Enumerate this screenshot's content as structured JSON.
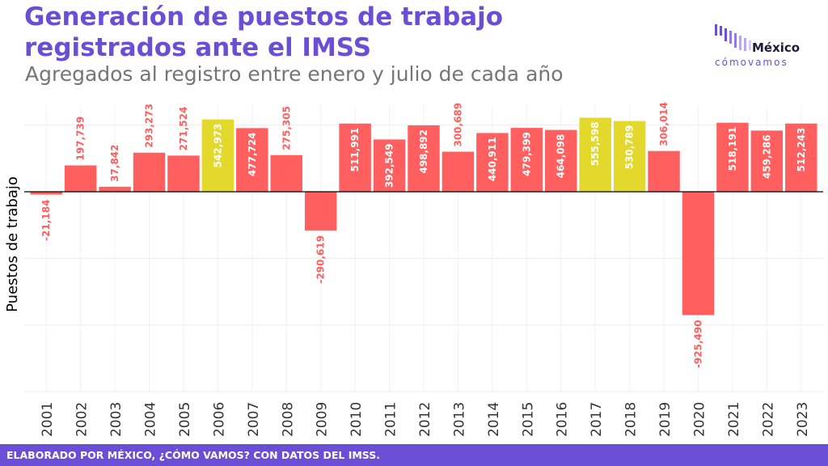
{
  "header": {
    "title_line1": "Generación de puestos de trabajo",
    "title_line2": "registrados ante el IMSS",
    "subtitle": "Agregados al registro entre enero y julio de cada año"
  },
  "logo": {
    "name": "México",
    "tagline": "cómovamos",
    "icon": "bar-cluster-icon"
  },
  "footer": {
    "text": "ELABORADO POR MÉXICO, ¿CÓMO VAMOS? CON DATOS DEL IMSS."
  },
  "colors": {
    "accent": "#6a4fd6",
    "bar_default": "#ff5f5f",
    "bar_highlight": "#e3d92c",
    "negative_label": "#ff5f5f",
    "positive_label": "#ffffff"
  },
  "chart_data": {
    "type": "bar",
    "title": "Generación de puestos de trabajo registrados ante el IMSS",
    "subtitle": "Agregados al registro entre enero y julio de cada año",
    "xlabel": "",
    "ylabel": "Puestos de trabajo",
    "grid": true,
    "legend": "none",
    "ylim": [
      -1500000,
      650000
    ],
    "categories": [
      "2001",
      "2002",
      "2003",
      "2004",
      "2005",
      "2006",
      "2007",
      "2008",
      "2009",
      "2010",
      "2011",
      "2012",
      "2013",
      "2014",
      "2015",
      "2016",
      "2017",
      "2018",
      "2019",
      "2020",
      "2021",
      "2022",
      "2023"
    ],
    "values": [
      -21184,
      197739,
      37842,
      293273,
      271524,
      542973,
      477724,
      275305,
      -290619,
      511991,
      392549,
      498892,
      300689,
      440911,
      479399,
      464098,
      555598,
      530789,
      306014,
      -925490,
      518191,
      459286,
      512243
    ],
    "labels": [
      "-21,184",
      "197,739",
      "37,842",
      "293,273",
      "271,524",
      "542,973",
      "477,724",
      "275,305",
      "-290,619",
      "511,991",
      "392,549",
      "498,892",
      "300,689",
      "440,911",
      "479,399",
      "464,098",
      "555,598",
      "530,789",
      "306,014",
      "-925,490",
      "518,191",
      "459,286",
      "512,243"
    ],
    "highlighted": [
      "2006",
      "2017",
      "2018"
    ]
  }
}
